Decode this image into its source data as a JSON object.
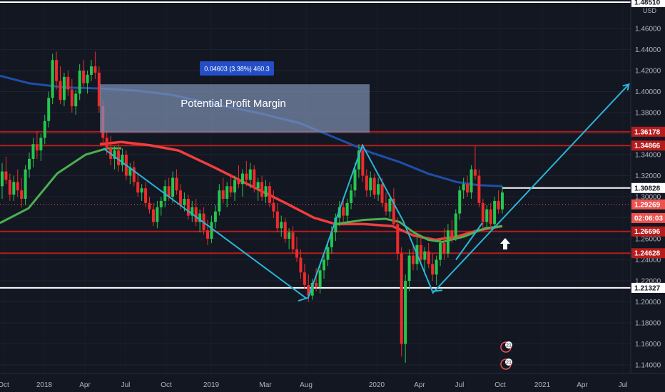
{
  "chart_data": {
    "type": "candlestick",
    "symbol_currency": "USD",
    "y_ticks": [
      "1.46000",
      "1.44000",
      "1.42000",
      "1.40000",
      "1.38000",
      "1.36000",
      "1.34000",
      "1.32000",
      "1.30000",
      "1.28000",
      "1.26000",
      "1.24000",
      "1.22000",
      "1.20000",
      "1.18000",
      "1.16000",
      "1.14000"
    ],
    "x_ticks": [
      "Oct",
      "2018",
      "Apr",
      "Jul",
      "Oct",
      "2019",
      "Mar",
      "Aug",
      "2020",
      "Apr",
      "Jul",
      "Oct",
      "2021",
      "Apr",
      "Jul"
    ],
    "ylim": [
      1.135,
      1.485
    ],
    "price_labels": [
      {
        "text": "1.48510",
        "value": 1.4851,
        "color": "#ffffff"
      },
      {
        "text": "1.36178",
        "value": 1.36178,
        "color": "#b71c1c"
      },
      {
        "text": "1.34866",
        "value": 1.34866,
        "color": "#b71c1c"
      },
      {
        "text": "1.30828",
        "value": 1.30828,
        "color": "#ffffff"
      },
      {
        "text": "1.29269",
        "value": 1.29269,
        "color": "#ef5350"
      },
      {
        "text": "02:06:03",
        "value": 1.2797,
        "color": "#ef5350"
      },
      {
        "text": "1.26696",
        "value": 1.26696,
        "color": "#b71c1c"
      },
      {
        "text": "1.24628",
        "value": 1.24628,
        "color": "#b71c1c"
      },
      {
        "text": "1.21327",
        "value": 1.21327,
        "color": "#ffffff"
      }
    ],
    "measure_label": "0.04603 (3.38%) 460.3",
    "annotation": "Potential Profit Margin",
    "event_badge": "21",
    "ohlc_weekly": [
      [
        1.31,
        1.332,
        1.298,
        1.324
      ],
      [
        1.324,
        1.338,
        1.312,
        1.316
      ],
      [
        1.316,
        1.322,
        1.296,
        1.302
      ],
      [
        1.302,
        1.32,
        1.296,
        1.314
      ],
      [
        1.314,
        1.326,
        1.3,
        1.306
      ],
      [
        1.306,
        1.318,
        1.29,
        1.298
      ],
      [
        1.298,
        1.33,
        1.292,
        1.326
      ],
      [
        1.326,
        1.342,
        1.318,
        1.336
      ],
      [
        1.336,
        1.356,
        1.328,
        1.35
      ],
      [
        1.35,
        1.362,
        1.336,
        1.344
      ],
      [
        1.344,
        1.36,
        1.334,
        1.356
      ],
      [
        1.356,
        1.378,
        1.35,
        1.372
      ],
      [
        1.372,
        1.4,
        1.366,
        1.394
      ],
      [
        1.394,
        1.436,
        1.388,
        1.43
      ],
      [
        1.43,
        1.438,
        1.402,
        1.41
      ],
      [
        1.41,
        1.424,
        1.388,
        1.392
      ],
      [
        1.392,
        1.418,
        1.386,
        1.414
      ],
      [
        1.414,
        1.42,
        1.396,
        1.402
      ],
      [
        1.402,
        1.412,
        1.38,
        1.386
      ],
      [
        1.386,
        1.402,
        1.378,
        1.398
      ],
      [
        1.398,
        1.426,
        1.392,
        1.42
      ],
      [
        1.42,
        1.43,
        1.404,
        1.408
      ],
      [
        1.408,
        1.42,
        1.398,
        1.416
      ],
      [
        1.416,
        1.43,
        1.41,
        1.424
      ],
      [
        1.424,
        1.438,
        1.412,
        1.418
      ],
      [
        1.418,
        1.424,
        1.38,
        1.386
      ],
      [
        1.386,
        1.392,
        1.35,
        1.356
      ],
      [
        1.356,
        1.362,
        1.34,
        1.346
      ],
      [
        1.346,
        1.358,
        1.33,
        1.336
      ],
      [
        1.336,
        1.348,
        1.326,
        1.344
      ],
      [
        1.344,
        1.35,
        1.324,
        1.33
      ],
      [
        1.33,
        1.346,
        1.324,
        1.34
      ],
      [
        1.34,
        1.344,
        1.316,
        1.32
      ],
      [
        1.32,
        1.332,
        1.312,
        1.328
      ],
      [
        1.328,
        1.334,
        1.31,
        1.314
      ],
      [
        1.314,
        1.322,
        1.3,
        1.304
      ],
      [
        1.304,
        1.312,
        1.296,
        1.308
      ],
      [
        1.308,
        1.314,
        1.29,
        1.294
      ],
      [
        1.294,
        1.3,
        1.284,
        1.288
      ],
      [
        1.288,
        1.294,
        1.272,
        1.276
      ],
      [
        1.276,
        1.296,
        1.27,
        1.29
      ],
      [
        1.29,
        1.3,
        1.282,
        1.296
      ],
      [
        1.296,
        1.316,
        1.29,
        1.31
      ],
      [
        1.31,
        1.318,
        1.296,
        1.3
      ],
      [
        1.3,
        1.324,
        1.294,
        1.318
      ],
      [
        1.318,
        1.326,
        1.302,
        1.306
      ],
      [
        1.306,
        1.312,
        1.288,
        1.292
      ],
      [
        1.292,
        1.304,
        1.286,
        1.298
      ],
      [
        1.298,
        1.302,
        1.278,
        1.282
      ],
      [
        1.282,
        1.296,
        1.276,
        1.29
      ],
      [
        1.29,
        1.298,
        1.272,
        1.276
      ],
      [
        1.276,
        1.288,
        1.266,
        1.284
      ],
      [
        1.284,
        1.29,
        1.264,
        1.268
      ],
      [
        1.268,
        1.278,
        1.254,
        1.26
      ],
      [
        1.26,
        1.282,
        1.256,
        1.276
      ],
      [
        1.276,
        1.292,
        1.27,
        1.286
      ],
      [
        1.286,
        1.312,
        1.282,
        1.306
      ],
      [
        1.306,
        1.318,
        1.294,
        1.298
      ],
      [
        1.298,
        1.314,
        1.29,
        1.31
      ],
      [
        1.31,
        1.322,
        1.3,
        1.304
      ],
      [
        1.304,
        1.32,
        1.296,
        1.316
      ],
      [
        1.316,
        1.33,
        1.308,
        1.312
      ],
      [
        1.312,
        1.326,
        1.3,
        1.322
      ],
      [
        1.322,
        1.334,
        1.31,
        1.316
      ],
      [
        1.316,
        1.332,
        1.308,
        1.326
      ],
      [
        1.326,
        1.33,
        1.304,
        1.308
      ],
      [
        1.308,
        1.318,
        1.296,
        1.314
      ],
      [
        1.314,
        1.32,
        1.296,
        1.3
      ],
      [
        1.3,
        1.316,
        1.294,
        1.31
      ],
      [
        1.31,
        1.314,
        1.29,
        1.294
      ],
      [
        1.294,
        1.306,
        1.28,
        1.286
      ],
      [
        1.286,
        1.294,
        1.266,
        1.27
      ],
      [
        1.27,
        1.282,
        1.262,
        1.276
      ],
      [
        1.276,
        1.28,
        1.256,
        1.26
      ],
      [
        1.26,
        1.27,
        1.25,
        1.266
      ],
      [
        1.266,
        1.272,
        1.246,
        1.25
      ],
      [
        1.25,
        1.262,
        1.238,
        1.242
      ],
      [
        1.242,
        1.25,
        1.222,
        1.228
      ],
      [
        1.228,
        1.236,
        1.212,
        1.216
      ],
      [
        1.216,
        1.226,
        1.2,
        1.206
      ],
      [
        1.206,
        1.222,
        1.202,
        1.218
      ],
      [
        1.218,
        1.232,
        1.21,
        1.214
      ],
      [
        1.214,
        1.236,
        1.208,
        1.23
      ],
      [
        1.23,
        1.246,
        1.222,
        1.24
      ],
      [
        1.24,
        1.258,
        1.234,
        1.252
      ],
      [
        1.252,
        1.272,
        1.246,
        1.266
      ],
      [
        1.266,
        1.284,
        1.258,
        1.28
      ],
      [
        1.28,
        1.296,
        1.272,
        1.29
      ],
      [
        1.29,
        1.3,
        1.276,
        1.282
      ],
      [
        1.282,
        1.298,
        1.276,
        1.294
      ],
      [
        1.294,
        1.312,
        1.288,
        1.306
      ],
      [
        1.306,
        1.332,
        1.3,
        1.326
      ],
      [
        1.326,
        1.35,
        1.318,
        1.344
      ],
      [
        1.344,
        1.35,
        1.314,
        1.32
      ],
      [
        1.32,
        1.326,
        1.3,
        1.306
      ],
      [
        1.306,
        1.324,
        1.3,
        1.318
      ],
      [
        1.318,
        1.322,
        1.298,
        1.302
      ],
      [
        1.302,
        1.318,
        1.296,
        1.312
      ],
      [
        1.312,
        1.318,
        1.29,
        1.294
      ],
      [
        1.294,
        1.304,
        1.282,
        1.286
      ],
      [
        1.286,
        1.302,
        1.28,
        1.298
      ],
      [
        1.298,
        1.308,
        1.27,
        1.274
      ],
      [
        1.274,
        1.28,
        1.24,
        1.246
      ],
      [
        1.246,
        1.252,
        1.148,
        1.16
      ],
      [
        1.16,
        1.226,
        1.142,
        1.22
      ],
      [
        1.22,
        1.25,
        1.21,
        1.244
      ],
      [
        1.244,
        1.256,
        1.23,
        1.236
      ],
      [
        1.236,
        1.262,
        1.23,
        1.254
      ],
      [
        1.254,
        1.262,
        1.236,
        1.24
      ],
      [
        1.24,
        1.252,
        1.226,
        1.248
      ],
      [
        1.248,
        1.256,
        1.232,
        1.236
      ],
      [
        1.236,
        1.246,
        1.22,
        1.226
      ],
      [
        1.226,
        1.244,
        1.216,
        1.24
      ],
      [
        1.24,
        1.26,
        1.234,
        1.256
      ],
      [
        1.256,
        1.27,
        1.24,
        1.246
      ],
      [
        1.246,
        1.274,
        1.242,
        1.268
      ],
      [
        1.268,
        1.278,
        1.256,
        1.262
      ],
      [
        1.262,
        1.288,
        1.258,
        1.284
      ],
      [
        1.284,
        1.31,
        1.278,
        1.306
      ],
      [
        1.306,
        1.318,
        1.298,
        1.312
      ],
      [
        1.312,
        1.32,
        1.3,
        1.304
      ],
      [
        1.304,
        1.33,
        1.298,
        1.326
      ],
      [
        1.326,
        1.348,
        1.316,
        1.32
      ],
      [
        1.32,
        1.326,
        1.29,
        1.294
      ],
      [
        1.294,
        1.298,
        1.27,
        1.276
      ],
      [
        1.276,
        1.292,
        1.27,
        1.288
      ],
      [
        1.288,
        1.294,
        1.27,
        1.274
      ],
      [
        1.274,
        1.3,
        1.27,
        1.296
      ],
      [
        1.296,
        1.306,
        1.284,
        1.288
      ],
      [
        1.288,
        1.31,
        1.284,
        1.304
      ]
    ]
  }
}
